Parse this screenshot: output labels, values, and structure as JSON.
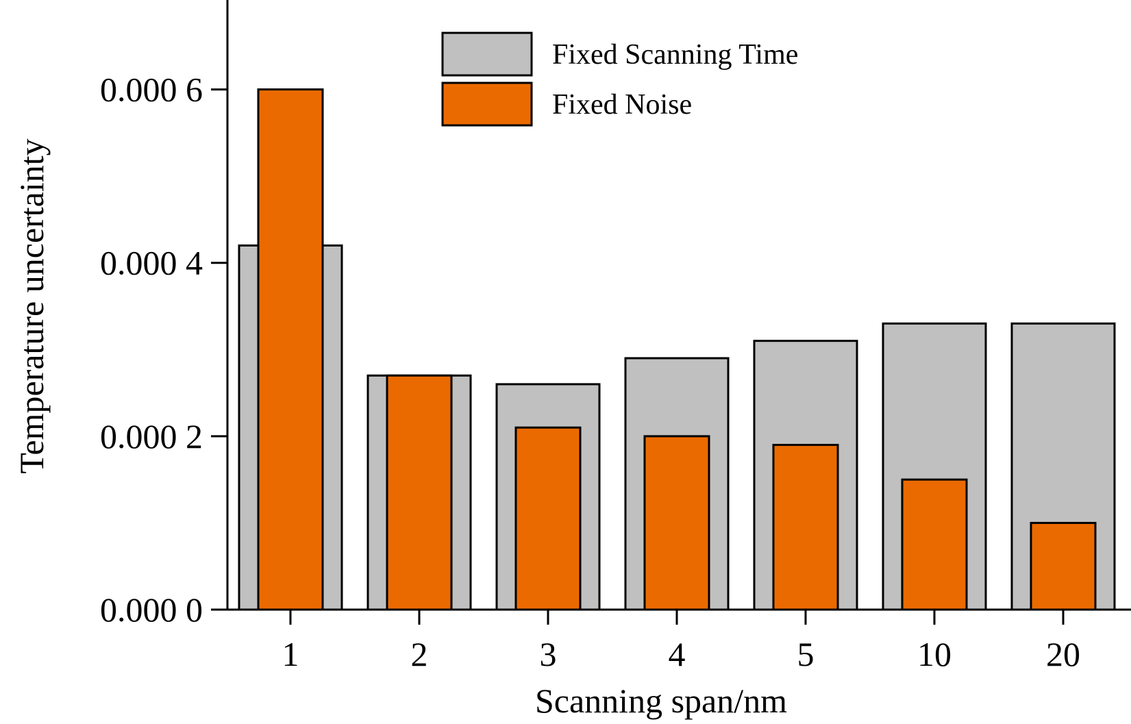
{
  "chart_data": {
    "type": "bar",
    "title": "",
    "xlabel": "Scanning span/nm",
    "ylabel": "Temperature uncertainty",
    "categories": [
      "1",
      "2",
      "3",
      "4",
      "5",
      "10",
      "20"
    ],
    "ylim": [
      0,
      0.0007
    ],
    "yticks": [
      0,
      0.0002,
      0.0004,
      0.0006
    ],
    "ytick_labels": [
      "0.000 0",
      "0.000 2",
      "0.000 4",
      "0.000 6"
    ],
    "grid": false,
    "legend_position": "top-center",
    "series": [
      {
        "name": "Fixed Scanning Time",
        "color": "#c0c0c0",
        "values": [
          0.00042,
          0.00027,
          0.00026,
          0.00029,
          0.00031,
          0.00033,
          0.00033
        ]
      },
      {
        "name": "Fixed Noise",
        "color": "#eb6a00",
        "values": [
          0.0006,
          0.00027,
          0.00021,
          0.0002,
          0.00019,
          0.00015,
          0.0001
        ]
      }
    ]
  }
}
